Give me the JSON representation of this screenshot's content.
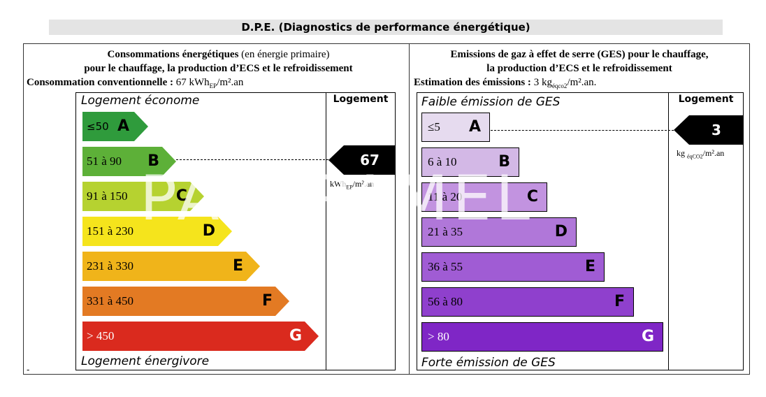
{
  "page_title": "D.P.E. (Diagnostics de performance énergétique)",
  "energy": {
    "header_line1_bold": "Consommations énergétiques",
    "header_line1_normal": "(en énergie primaire)",
    "header_line2": "pour le chauffage, la production d’ECS et le refroidissement",
    "header_line3_bold": "Consommation conventionnelle :",
    "header_line3_value": "67 kWh",
    "header_line3_sub": "EP",
    "header_line3_tail": "/m².an",
    "top_label": "Logement  économe",
    "bottom_label": "Logement énergivore",
    "column_head": "Logement",
    "value": "67",
    "unit_main": "kWh",
    "unit_sub": "EP",
    "unit_tail": "/m².an",
    "current_class": "B",
    "classes": [
      {
        "range": "≤50",
        "letter": "A",
        "color": "#2f9b3c",
        "text_color": "#000000"
      },
      {
        "range": "51 à 90",
        "letter": "B",
        "color": "#5db038",
        "text_color": "#000000"
      },
      {
        "range": "91 à 150",
        "letter": "C",
        "color": "#b6d230",
        "text_color": "#000000"
      },
      {
        "range": "151 à 230",
        "letter": "D",
        "color": "#f5e41c",
        "text_color": "#000000"
      },
      {
        "range": "231 à 330",
        "letter": "E",
        "color": "#f0b41a",
        "text_color": "#000000"
      },
      {
        "range": "331 à 450",
        "letter": "F",
        "color": "#e37a23",
        "text_color": "#000000"
      },
      {
        "range": "> 450",
        "letter": "G",
        "color": "#da2a1e",
        "text_color": "#ffffff"
      }
    ]
  },
  "ges": {
    "header_line1": "Emissions de gaz à effet de serre (GES) pour le chauffage,",
    "header_line2": "la production d’ECS et le refroidissement",
    "header_line3_bold": "Estimation des émissions :",
    "header_line3_value": "3 kg",
    "header_line3_sub": "éqco2",
    "header_line3_tail": "/m².an.",
    "top_label": "Faible émission de GES",
    "bottom_label": "Forte émission de GES",
    "column_head": "Logement",
    "value": "3",
    "unit_main": "kg",
    "unit_sub": "éqCO2",
    "unit_tail": "/m².an",
    "current_class": "A",
    "classes": [
      {
        "range": "≤5",
        "letter": "A",
        "color": "#e6dbef",
        "text_color": "#000000"
      },
      {
        "range": "6 à 10",
        "letter": "B",
        "color": "#d3b8e6",
        "text_color": "#000000"
      },
      {
        "range": "11 à 20",
        "letter": "C",
        "color": "#c293e0",
        "text_color": "#000000"
      },
      {
        "range": "21 à 35",
        "letter": "D",
        "color": "#b077d9",
        "text_color": "#000000"
      },
      {
        "range": "36 à 55",
        "letter": "E",
        "color": "#a05cd4",
        "text_color": "#000000"
      },
      {
        "range": "56 à 80",
        "letter": "F",
        "color": "#8f40cd",
        "text_color": "#000000"
      },
      {
        "range": "> 80",
        "letter": "G",
        "color": "#7f26c6",
        "text_color": "#ffffff"
      }
    ]
  },
  "watermark": "PAPRPAMEL",
  "footnote_mark": "-"
}
